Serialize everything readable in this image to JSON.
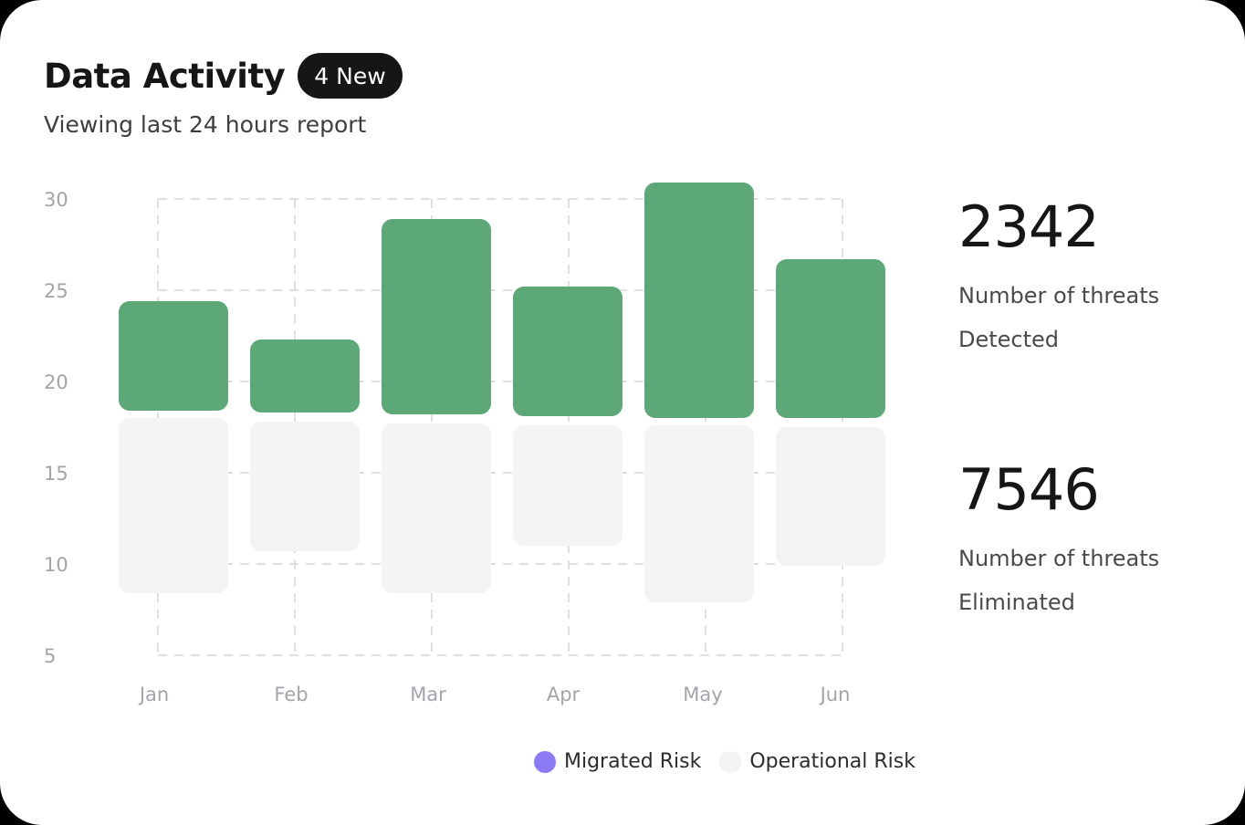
{
  "header": {
    "title": "Data Activity",
    "badge": "4 New",
    "subtitle": "Viewing last 24 hours report"
  },
  "stats": [
    {
      "value": "2342",
      "label_line1": "Number of threats",
      "label_line2": "Detected"
    },
    {
      "value": "7546",
      "label_line1": "Number of threats",
      "label_line2": "Eliminated"
    }
  ],
  "legend": [
    {
      "label": "Migrated Risk",
      "color": "#8b7cf6"
    },
    {
      "label": "Operational Risk",
      "color": "#f4f4f4"
    }
  ],
  "colors": {
    "migrated_bar": "#5da877",
    "operational_bar": "#f4f4f4",
    "grid": "#d6d6d6",
    "tick_label": "#a2a4ab"
  },
  "chart_data": {
    "type": "bar",
    "stacked": "floating",
    "categories": [
      "Jan",
      "Feb",
      "Mar",
      "Apr",
      "May",
      "Jun"
    ],
    "y_ticks": [
      "30",
      "25",
      "20",
      "15",
      "10",
      "5"
    ],
    "ylim": [
      5,
      30
    ],
    "grid": true,
    "legend_position": "bottom-center",
    "series": [
      {
        "name": "Operational Risk",
        "ranges": [
          [
            8.4,
            18.0
          ],
          [
            10.7,
            17.8
          ],
          [
            8.4,
            17.7
          ],
          [
            11.0,
            17.6
          ],
          [
            7.9,
            17.6
          ],
          [
            9.9,
            17.5
          ]
        ]
      },
      {
        "name": "Migrated Risk",
        "ranges": [
          [
            18.4,
            24.4
          ],
          [
            18.3,
            22.3
          ],
          [
            18.2,
            28.9
          ],
          [
            18.1,
            25.2
          ],
          [
            18.0,
            30.9
          ],
          [
            18.0,
            26.7
          ]
        ]
      }
    ]
  }
}
